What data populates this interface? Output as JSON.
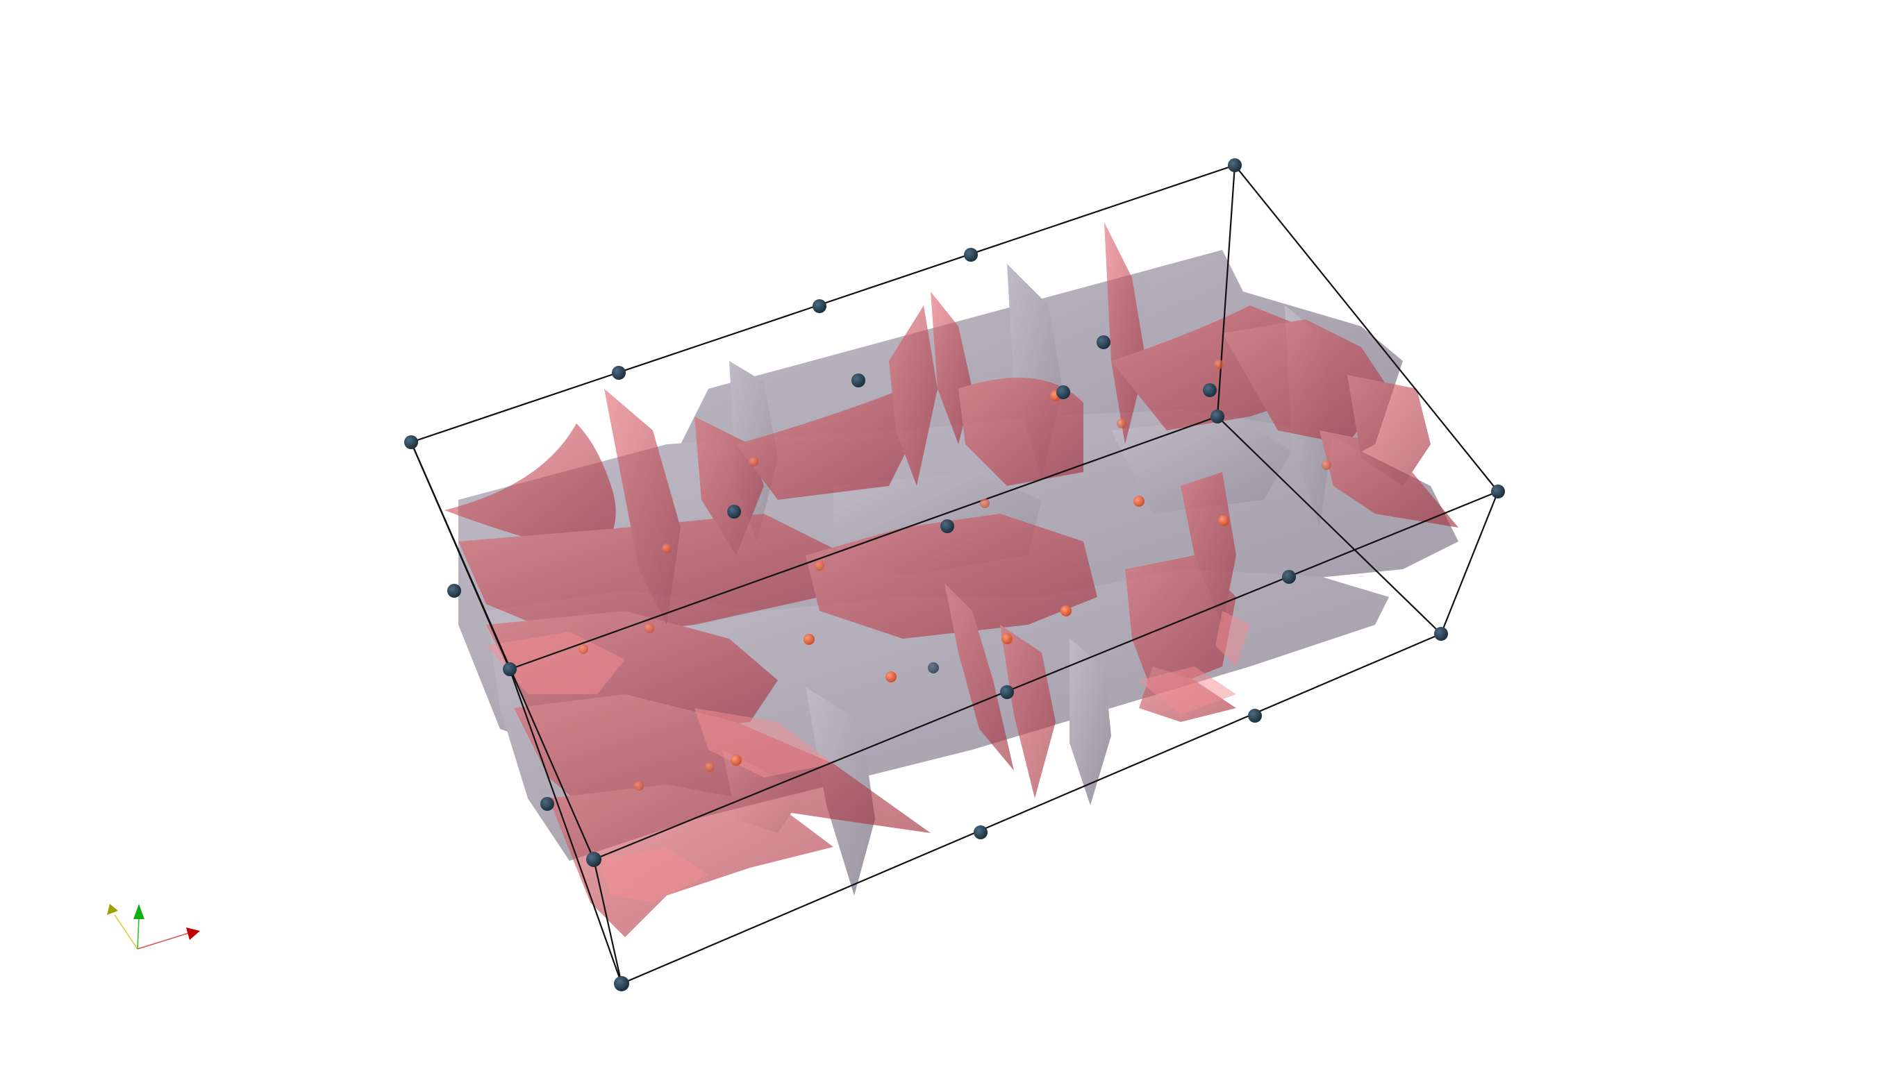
{
  "scene": {
    "background": "#ffffff",
    "surface_colors": {
      "red_sheets": "#c23a47",
      "red_highlight": "#f07a80",
      "grey_sheets": "#5a4f68",
      "grey_light": "#8a8298"
    },
    "point_colors": {
      "box_nodes": "#1f3b4f",
      "interior_points": "#e0623f"
    },
    "box_edge_color": "#111111"
  },
  "orientation_axes": {
    "x_color": "#d01010",
    "y_color": "#e8e000",
    "z_color": "#10c010"
  }
}
